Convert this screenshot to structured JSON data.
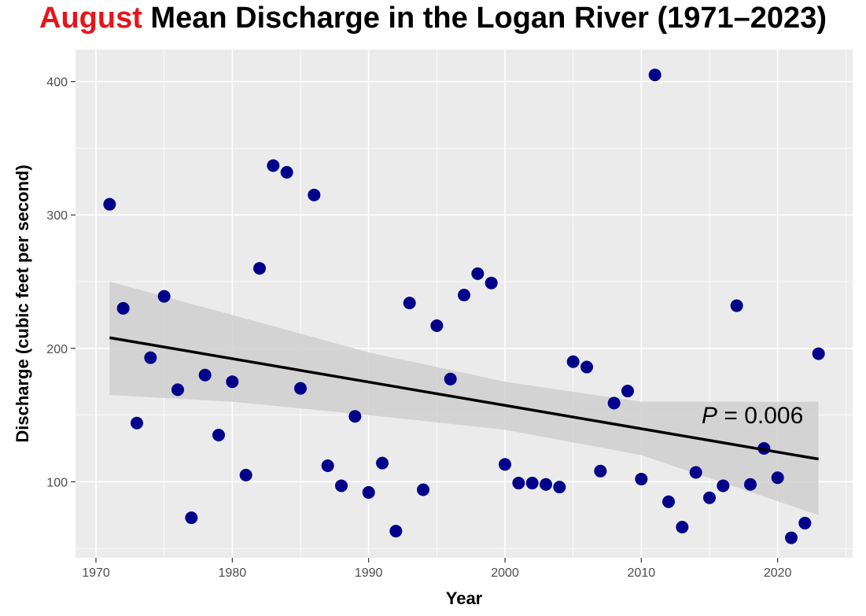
{
  "title": {
    "highlight": "August",
    "rest": " Mean Discharge in the Logan River (1971–2023)",
    "highlight_color": "#e8141b"
  },
  "annotation": {
    "p_label": "P",
    "p_value": " = 0.006"
  },
  "colors": {
    "panel": "#ebebeb",
    "grid": "#ffffff",
    "point": "#00008b",
    "ribbon": "#cfcfcf",
    "line": "#000000"
  },
  "chart_data": {
    "type": "scatter",
    "xlabel": "Year",
    "ylabel": "Discharge (cubic feet per second)",
    "xlim": [
      1968.5,
      2025.5
    ],
    "ylim": [
      43,
      424
    ],
    "x_ticks": [
      1970,
      1980,
      1990,
      2000,
      2010,
      2020
    ],
    "y_ticks": [
      100,
      200,
      300,
      400
    ],
    "grid": true,
    "points": [
      {
        "x": 1971,
        "y": 308
      },
      {
        "x": 1972,
        "y": 230
      },
      {
        "x": 1973,
        "y": 144
      },
      {
        "x": 1974,
        "y": 193
      },
      {
        "x": 1975,
        "y": 239
      },
      {
        "x": 1976,
        "y": 169
      },
      {
        "x": 1977,
        "y": 73
      },
      {
        "x": 1978,
        "y": 180
      },
      {
        "x": 1979,
        "y": 135
      },
      {
        "x": 1980,
        "y": 175
      },
      {
        "x": 1981,
        "y": 105
      },
      {
        "x": 1982,
        "y": 260
      },
      {
        "x": 1983,
        "y": 337
      },
      {
        "x": 1984,
        "y": 332
      },
      {
        "x": 1985,
        "y": 170
      },
      {
        "x": 1986,
        "y": 315
      },
      {
        "x": 1987,
        "y": 112
      },
      {
        "x": 1988,
        "y": 97
      },
      {
        "x": 1989,
        "y": 149
      },
      {
        "x": 1990,
        "y": 92
      },
      {
        "x": 1991,
        "y": 114
      },
      {
        "x": 1992,
        "y": 63
      },
      {
        "x": 1993,
        "y": 234
      },
      {
        "x": 1994,
        "y": 94
      },
      {
        "x": 1995,
        "y": 217
      },
      {
        "x": 1996,
        "y": 177
      },
      {
        "x": 1997,
        "y": 240
      },
      {
        "x": 1998,
        "y": 256
      },
      {
        "x": 1999,
        "y": 249
      },
      {
        "x": 2000,
        "y": 113
      },
      {
        "x": 2001,
        "y": 99
      },
      {
        "x": 2002,
        "y": 99
      },
      {
        "x": 2003,
        "y": 98
      },
      {
        "x": 2004,
        "y": 96
      },
      {
        "x": 2005,
        "y": 190
      },
      {
        "x": 2006,
        "y": 186
      },
      {
        "x": 2007,
        "y": 108
      },
      {
        "x": 2008,
        "y": 159
      },
      {
        "x": 2009,
        "y": 168
      },
      {
        "x": 2010,
        "y": 102
      },
      {
        "x": 2011,
        "y": 405
      },
      {
        "x": 2012,
        "y": 85
      },
      {
        "x": 2013,
        "y": 66
      },
      {
        "x": 2014,
        "y": 107
      },
      {
        "x": 2015,
        "y": 88
      },
      {
        "x": 2016,
        "y": 97
      },
      {
        "x": 2017,
        "y": 232
      },
      {
        "x": 2018,
        "y": 98
      },
      {
        "x": 2019,
        "y": 125
      },
      {
        "x": 2020,
        "y": 103
      },
      {
        "x": 2021,
        "y": 58
      },
      {
        "x": 2022,
        "y": 69
      },
      {
        "x": 2023,
        "y": 196
      }
    ],
    "trend_line": {
      "x": [
        1971,
        2023
      ],
      "y": [
        208,
        117
      ]
    },
    "confidence_band": {
      "x": [
        1971,
        1980,
        1990,
        2000,
        2010,
        2023
      ],
      "upper": [
        250,
        225,
        197,
        175,
        160,
        160
      ],
      "lower": [
        165,
        160,
        150,
        139,
        120,
        75
      ]
    }
  }
}
